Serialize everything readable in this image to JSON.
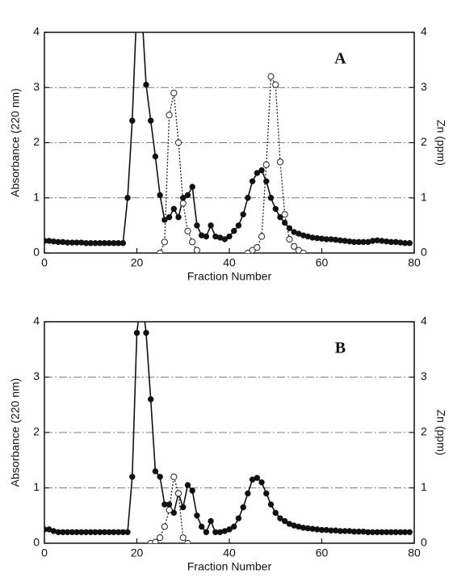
{
  "chart_data": [
    {
      "type": "line",
      "panel_label": "A",
      "xlabel": "Fraction Number",
      "ylabel": "Absorbance (220 nm)",
      "y2label": "Zn (ppm)",
      "xlim": [
        0,
        80
      ],
      "xticks": [
        0,
        20,
        40,
        60,
        80
      ],
      "ylim": [
        0,
        4
      ],
      "yticks": [
        0,
        1,
        2,
        3,
        4
      ],
      "y2lim": [
        0,
        4
      ],
      "y2ticks": [
        0,
        1,
        2,
        3,
        4
      ],
      "grid": true,
      "series": [
        {
          "color": "#111111",
          "marker": "filled",
          "linestyle": "solid",
          "x": [
            0,
            1,
            2,
            3,
            4,
            5,
            6,
            7,
            8,
            9,
            10,
            11,
            12,
            13,
            14,
            15,
            16,
            17,
            18,
            19,
            20,
            21,
            22,
            23,
            24,
            25,
            26,
            27,
            28,
            29,
            30,
            31,
            32,
            33,
            34,
            35,
            36,
            37,
            38,
            39,
            40,
            41,
            42,
            43,
            44,
            45,
            46,
            47,
            48,
            49,
            50,
            51,
            52,
            53,
            54,
            55,
            56,
            57,
            58,
            59,
            60,
            61,
            62,
            63,
            64,
            65,
            66,
            67,
            68,
            69,
            70,
            71,
            72,
            73,
            74,
            75,
            76,
            77,
            78,
            79
          ],
          "values": [
            0.22,
            0.22,
            0.21,
            0.2,
            0.2,
            0.19,
            0.19,
            0.19,
            0.19,
            0.18,
            0.18,
            0.18,
            0.18,
            0.18,
            0.18,
            0.18,
            0.18,
            0.18,
            1.0,
            2.4,
            4.5,
            4.5,
            3.05,
            2.4,
            1.75,
            1.05,
            0.6,
            0.65,
            0.8,
            0.65,
            1.0,
            1.05,
            1.2,
            0.5,
            0.32,
            0.3,
            0.5,
            0.3,
            0.28,
            0.25,
            0.3,
            0.4,
            0.5,
            0.7,
            1.0,
            1.3,
            1.45,
            1.5,
            1.3,
            1.0,
            0.8,
            0.65,
            0.55,
            0.45,
            0.38,
            0.35,
            0.32,
            0.3,
            0.28,
            0.27,
            0.26,
            0.25,
            0.25,
            0.24,
            0.23,
            0.22,
            0.21,
            0.2,
            0.2,
            0.2,
            0.2,
            0.22,
            0.23,
            0.22,
            0.21,
            0.2,
            0.2,
            0.19,
            0.18,
            0.18
          ]
        },
        {
          "color": "#222222",
          "marker": "open",
          "linestyle": "dotted",
          "axis": "y2",
          "x": [
            25,
            26,
            27,
            28,
            29,
            30,
            31,
            32,
            33
          ],
          "values": [
            0,
            0.2,
            2.5,
            2.9,
            2.0,
            0.9,
            0.4,
            0.2,
            0.05
          ]
        },
        {
          "color": "#222222",
          "marker": "open",
          "linestyle": "dotted",
          "axis": "y2",
          "x": [
            44,
            45,
            46,
            47,
            48,
            49,
            50,
            51,
            52,
            53,
            54,
            55,
            56
          ],
          "values": [
            0,
            0.05,
            0.1,
            0.3,
            1.6,
            3.2,
            3.05,
            1.65,
            0.7,
            0.25,
            0.12,
            0.05,
            0
          ]
        }
      ]
    },
    {
      "type": "line",
      "panel_label": "B",
      "xlabel": "Fraction Number",
      "ylabel": "Absorbance (220 nm)",
      "y2label": "Zn (ppm)",
      "xlim": [
        0,
        80
      ],
      "xticks": [
        0,
        20,
        40,
        60,
        80
      ],
      "ylim": [
        0,
        4
      ],
      "yticks": [
        0,
        1,
        2,
        3,
        4
      ],
      "y2lim": [
        0,
        4
      ],
      "y2ticks": [
        0,
        1,
        2,
        3,
        4
      ],
      "grid": true,
      "series": [
        {
          "color": "#111111",
          "marker": "filled",
          "linestyle": "solid",
          "x": [
            0,
            1,
            2,
            3,
            4,
            5,
            6,
            7,
            8,
            9,
            10,
            11,
            12,
            13,
            14,
            15,
            16,
            17,
            18,
            19,
            20,
            21,
            22,
            23,
            24,
            25,
            26,
            27,
            28,
            29,
            30,
            31,
            32,
            33,
            34,
            35,
            36,
            37,
            38,
            39,
            40,
            41,
            42,
            43,
            44,
            45,
            46,
            47,
            48,
            49,
            50,
            51,
            52,
            53,
            54,
            55,
            56,
            57,
            58,
            59,
            60,
            61,
            62,
            63,
            64,
            65,
            66,
            67,
            68,
            69,
            70,
            71,
            72,
            73,
            74,
            75,
            76,
            77,
            78,
            79
          ],
          "values": [
            0.25,
            0.25,
            0.22,
            0.2,
            0.2,
            0.2,
            0.2,
            0.2,
            0.2,
            0.2,
            0.2,
            0.2,
            0.2,
            0.2,
            0.2,
            0.2,
            0.2,
            0.2,
            0.2,
            1.2,
            3.8,
            4.5,
            3.8,
            2.6,
            1.3,
            1.2,
            0.7,
            0.7,
            0.55,
            0.9,
            0.65,
            1.05,
            0.95,
            0.5,
            0.3,
            0.2,
            0.4,
            0.2,
            0.2,
            0.22,
            0.25,
            0.3,
            0.45,
            0.65,
            0.9,
            1.15,
            1.18,
            1.1,
            0.9,
            0.7,
            0.55,
            0.45,
            0.4,
            0.35,
            0.32,
            0.3,
            0.28,
            0.27,
            0.26,
            0.25,
            0.24,
            0.24,
            0.23,
            0.23,
            0.22,
            0.22,
            0.22,
            0.21,
            0.21,
            0.21,
            0.2,
            0.2,
            0.2,
            0.2,
            0.2,
            0.2,
            0.2,
            0.2,
            0.2,
            0.2
          ]
        },
        {
          "color": "#222222",
          "marker": "open",
          "linestyle": "dotted",
          "axis": "y2",
          "x": [
            23,
            24,
            25,
            26,
            27,
            28,
            29,
            30,
            31
          ],
          "values": [
            0,
            0.02,
            0.1,
            0.3,
            0.6,
            1.2,
            0.9,
            0.1,
            0
          ]
        }
      ]
    }
  ]
}
